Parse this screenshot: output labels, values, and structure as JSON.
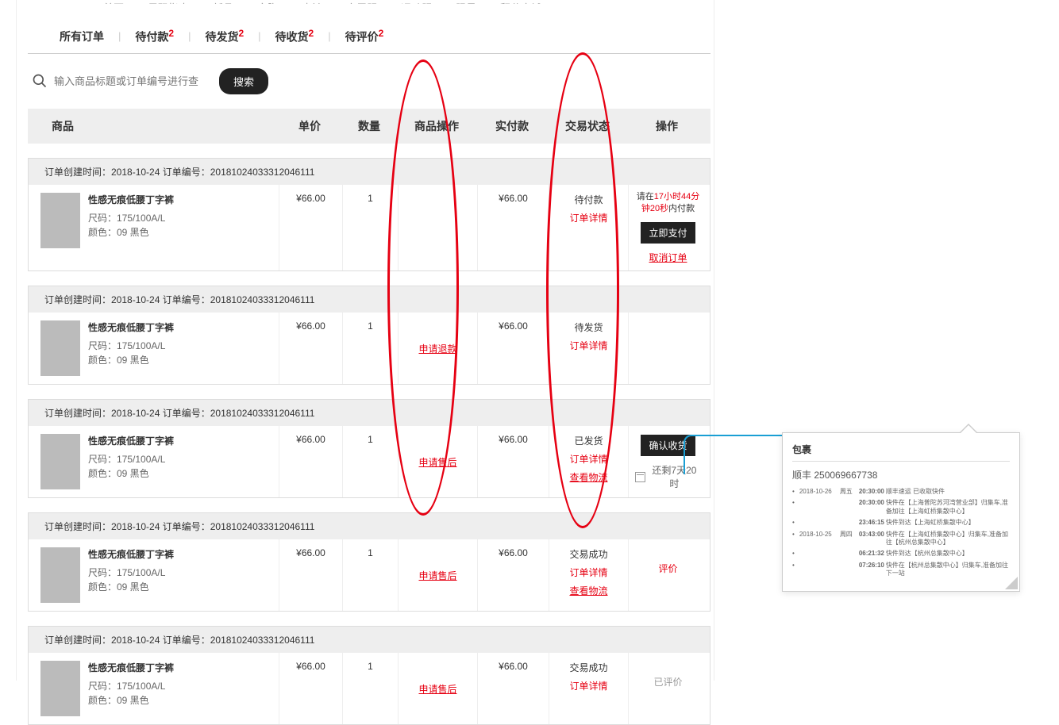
{
  "topnav": [
    "首页",
    "尺码指南",
    "新品",
    "文胸",
    "内裤",
    "家居服",
    "运动服",
    "限量",
    "积分商城"
  ],
  "tabs": [
    {
      "label": "所有订单",
      "count": ""
    },
    {
      "label": "待付款",
      "count": "2"
    },
    {
      "label": "待发货",
      "count": "2"
    },
    {
      "label": "待收货",
      "count": "2"
    },
    {
      "label": "待评价",
      "count": "2"
    }
  ],
  "search": {
    "placeholder": "输入商品标题或订单编号进行查",
    "btn": "搜索"
  },
  "thead": {
    "product": "商品",
    "price": "单价",
    "qty": "数量",
    "itemop": "商品操作",
    "paid": "实付款",
    "status": "交易状态",
    "op": "操作"
  },
  "orderHeadLabels": {
    "created": "订单创建时间：",
    "no": "订单编号："
  },
  "common": {
    "date": "2018-10-24",
    "orderNo": "20181024033312046111",
    "title": "性感无痕低腰丁字裤",
    "sizeLabel": "尺码：",
    "size": "175/100A/L",
    "colorLabel": "颜色：",
    "color": "09 黑色",
    "price": "¥66.00",
    "qty": "1",
    "paid": "¥66.00"
  },
  "orders": [
    {
      "status": "待付款",
      "detail": "订单详情",
      "itemop": "",
      "op": {
        "type": "pay",
        "text1": "请在",
        "time": "17小时44分钟20秒",
        "text2": "内付款",
        "btn": "立即支付",
        "cancel": "取消订单"
      }
    },
    {
      "status": "待发货",
      "detail": "订单详情",
      "itemop": "申请退款",
      "op": {
        "type": "none"
      }
    },
    {
      "status": "已发货",
      "detail": "订单详情",
      "logistics": "查看物流",
      "itemop": "申请售后",
      "op": {
        "type": "confirm",
        "btn": "确认收货",
        "remain": "还剩7天20时"
      }
    },
    {
      "status": "交易成功",
      "detail": "订单详情",
      "logistics": "查看物流",
      "itemop": "申请售后",
      "op": {
        "type": "review",
        "btn": "评价"
      }
    },
    {
      "status": "交易成功",
      "detail": "订单详情",
      "itemop": "申请售后",
      "op": {
        "type": "reviewed",
        "text": "已评价"
      }
    }
  ],
  "popup": {
    "title": "包裹",
    "carrier": "顺丰",
    "no": "250069667738",
    "tracks": [
      {
        "date": "2018-10-26",
        "wk": "周五",
        "time": "20:30:00",
        "desc": "顺丰速运 已收取快件"
      },
      {
        "date": "",
        "wk": "",
        "time": "20:30:00",
        "desc": "快件在【上海普陀苏河湾营业部】归集车,准备加往【上海虹桥集散中心】"
      },
      {
        "date": "",
        "wk": "",
        "time": "23:46:15",
        "desc": "快件到达【上海虹桥集散中心】"
      },
      {
        "date": "2018-10-25",
        "wk": "周四",
        "time": "03:43:00",
        "desc": "快件在【上海虹桥集散中心】归集车,准备加往【杭州总集散中心】"
      },
      {
        "date": "",
        "wk": "",
        "time": "06:21:32",
        "desc": "快件到达【杭州总集散中心】"
      },
      {
        "date": "",
        "wk": "",
        "time": "07:26:10",
        "desc": "快件在【杭州总集散中心】归集车,准备加往下一站"
      }
    ]
  },
  "annotation": {
    "ellipse_color": "#e60012",
    "connector_color": "#1a9fd4"
  }
}
